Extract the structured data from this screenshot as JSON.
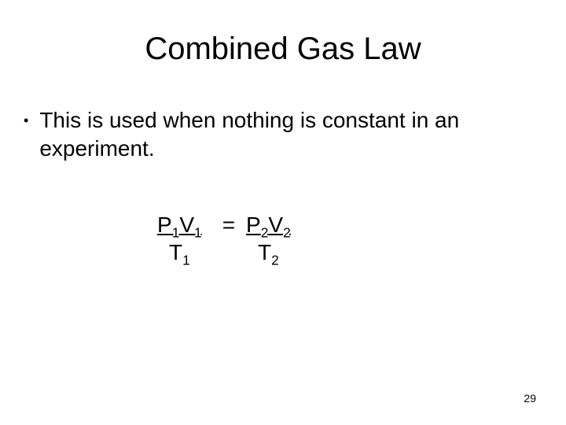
{
  "title": "Combined Gas Law",
  "bullet": {
    "marker": "•",
    "text": "This is used when nothing is constant in an experiment."
  },
  "equation": {
    "left": {
      "P": "P",
      "V": "V",
      "T": "T",
      "sub": "1"
    },
    "equals": "=",
    "right": {
      "P": "P",
      "V": "V",
      "T": "T",
      "sub": "2"
    }
  },
  "pageNumber": "29",
  "style": {
    "background_color": "#ffffff",
    "text_color": "#000000",
    "title_fontsize": 40,
    "body_fontsize": 28,
    "pagenum_fontsize": 14,
    "font_family": "Arial"
  }
}
